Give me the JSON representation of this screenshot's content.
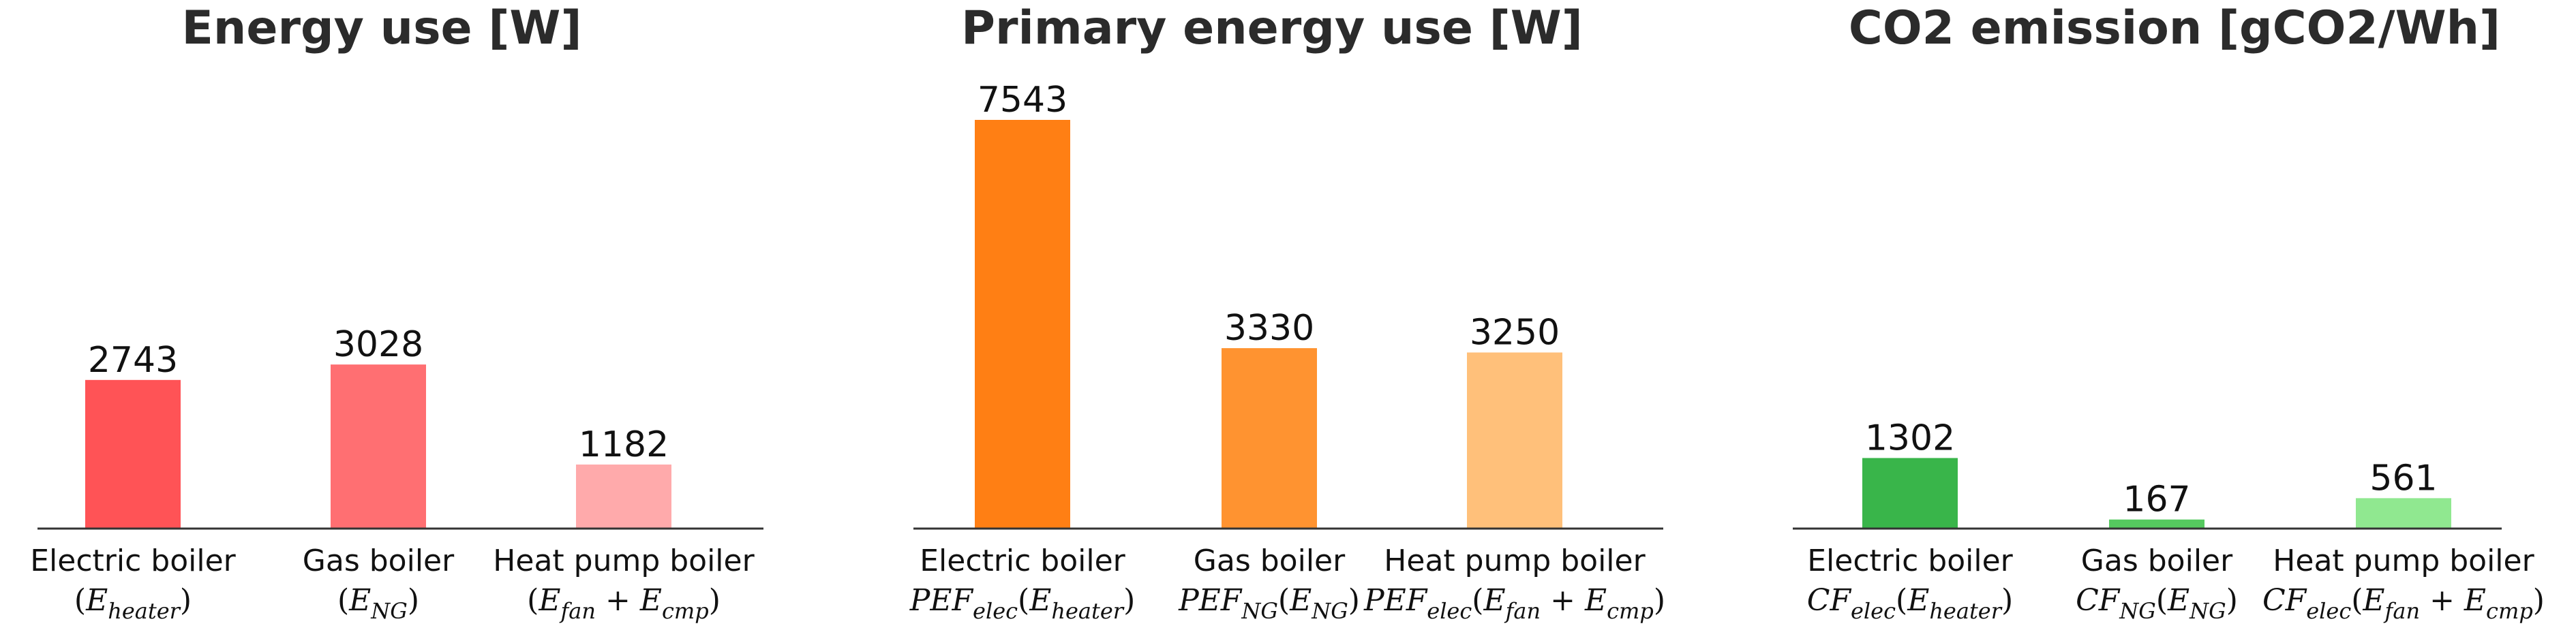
{
  "chart_data": [
    {
      "type": "bar",
      "title": "Energy use [W]",
      "categories": [
        "Electric boiler",
        "Gas boiler",
        "Heat pump boiler"
      ],
      "formulas": [
        "(E_heater)",
        "(E_NG)",
        "(E_fan + E_cmp)"
      ],
      "values": [
        2743,
        3028,
        1182
      ],
      "colors": [
        "#ff5356",
        "#ff6f72",
        "#ffaaab"
      ],
      "xlabel": "",
      "ylabel": "",
      "grid": false
    },
    {
      "type": "bar",
      "title": "Primary energy use [W]",
      "categories": [
        "Electric boiler",
        "Gas boiler",
        "Heat pump boiler"
      ],
      "formulas": [
        "PEF_elec(E_heater)",
        "PEF_NG(E_NG)",
        "PEF_elec(E_fan + E_cmp)"
      ],
      "values": [
        7543,
        3330,
        3250
      ],
      "colors": [
        "#ff7f14",
        "#ff9330",
        "#ffc07a"
      ],
      "xlabel": "",
      "ylabel": "",
      "grid": false
    },
    {
      "type": "bar",
      "title": "CO2 emission [gCO2/Wh]",
      "categories": [
        "Electric boiler",
        "Gas boiler",
        "Heat pump boiler"
      ],
      "formulas": [
        "CF_elec(E_heater)",
        "CF_NG(E_NG)",
        "CF_elec(E_fan + E_cmp)"
      ],
      "values": [
        1302,
        167,
        561
      ],
      "colors": [
        "#39b54a",
        "#55c95f",
        "#90e890"
      ],
      "xlabel": "",
      "ylabel": "",
      "grid": false
    }
  ]
}
